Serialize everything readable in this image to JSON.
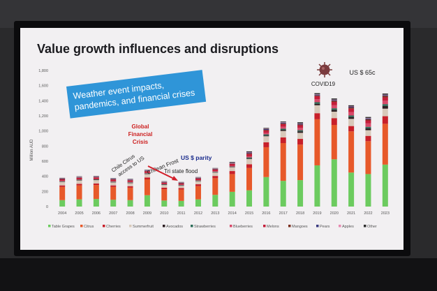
{
  "slide": {
    "title": "Value growth influences and disruptions",
    "callout": "Weather event impacts, pandemics, and financial crises",
    "annotations": {
      "covid": "COVID19",
      "price": "US $ 65c",
      "gfc_1": "Global",
      "gfc_2": "Financial",
      "gfc_3": "Crisis",
      "chile_1": "Chile Citrus",
      "chile_2": "access to US",
      "frost": "Chilean Frost",
      "parity": "US $ parity",
      "flood": "Tri state flood"
    }
  },
  "chart_data": {
    "type": "bar",
    "stacked": true,
    "ylabel": "Million AUD",
    "ylim": [
      0,
      1800
    ],
    "yticks": [
      0,
      200,
      400,
      600,
      800,
      "1,000",
      "1,200",
      "1,400",
      "1,600",
      "1,800"
    ],
    "categories": [
      "2004",
      "2005",
      "2006",
      "2007",
      "2008",
      "2009",
      "2010",
      "2011",
      "2012",
      "2013",
      "2014",
      "2015",
      "2016",
      "2017",
      "2018",
      "2019",
      "2020",
      "2021",
      "2022",
      "2023"
    ],
    "series": [
      {
        "name": "Table Grapes",
        "color": "#6ccb5f",
        "values": [
          85,
          95,
          100,
          90,
          85,
          150,
          80,
          75,
          95,
          155,
          195,
          215,
          390,
          340,
          350,
          545,
          625,
          450,
          430,
          555
        ]
      },
      {
        "name": "Citrus",
        "color": "#e7592a",
        "values": [
          175,
          185,
          185,
          170,
          165,
          210,
          150,
          150,
          175,
          220,
          235,
          295,
          395,
          500,
          470,
          610,
          455,
          545,
          435,
          540
        ]
      },
      {
        "name": "Cherries",
        "color": "#c8202a",
        "values": [
          20,
          20,
          20,
          20,
          20,
          25,
          20,
          20,
          25,
          30,
          40,
          50,
          65,
          75,
          75,
          80,
          90,
          70,
          70,
          100
        ]
      },
      {
        "name": "Summerfruit",
        "color": "#d8c9ba",
        "values": [
          45,
          45,
          45,
          40,
          40,
          45,
          35,
          30,
          40,
          45,
          50,
          70,
          80,
          85,
          80,
          105,
          85,
          95,
          75,
          100
        ]
      },
      {
        "name": "Avocados",
        "color": "#2c1f22",
        "values": [
          5,
          5,
          5,
          5,
          5,
          5,
          5,
          5,
          5,
          5,
          5,
          10,
          10,
          15,
          20,
          20,
          25,
          25,
          25,
          35
        ]
      },
      {
        "name": "Strawberries",
        "color": "#2e6e5a",
        "values": [
          5,
          5,
          5,
          5,
          5,
          5,
          5,
          5,
          5,
          5,
          5,
          10,
          15,
          15,
          15,
          20,
          20,
          20,
          20,
          25
        ]
      },
      {
        "name": "Blueberries",
        "color": "#d84a6a",
        "values": [
          5,
          5,
          5,
          5,
          5,
          5,
          5,
          5,
          5,
          10,
          10,
          15,
          20,
          25,
          30,
          40,
          40,
          45,
          45,
          45
        ]
      },
      {
        "name": "Melons",
        "color": "#c41e3a",
        "values": [
          20,
          20,
          20,
          20,
          20,
          20,
          15,
          15,
          20,
          20,
          25,
          30,
          30,
          35,
          35,
          40,
          45,
          45,
          40,
          45
        ]
      },
      {
        "name": "Mangoes",
        "color": "#7a2f1f",
        "values": [
          5,
          5,
          5,
          5,
          5,
          5,
          5,
          5,
          5,
          5,
          5,
          10,
          10,
          10,
          10,
          10,
          15,
          15,
          15,
          20
        ]
      },
      {
        "name": "Pears",
        "color": "#3a3a80",
        "values": [
          5,
          5,
          5,
          5,
          5,
          5,
          5,
          5,
          5,
          5,
          5,
          10,
          10,
          10,
          10,
          10,
          10,
          10,
          10,
          10
        ]
      },
      {
        "name": "Apples",
        "color": "#e78ab0",
        "values": [
          5,
          5,
          5,
          5,
          5,
          5,
          5,
          5,
          5,
          5,
          5,
          5,
          5,
          5,
          5,
          5,
          5,
          5,
          5,
          5
        ]
      },
      {
        "name": "Other",
        "color": "#303030",
        "values": [
          5,
          5,
          5,
          5,
          5,
          5,
          5,
          5,
          5,
          5,
          10,
          10,
          10,
          10,
          15,
          15,
          15,
          15,
          15,
          15
        ]
      }
    ]
  },
  "colors": {
    "gfc": "#cc1e1e",
    "chile": "#c41e3a",
    "parity": "#1a2b8c",
    "callout": "#2f95d8"
  }
}
